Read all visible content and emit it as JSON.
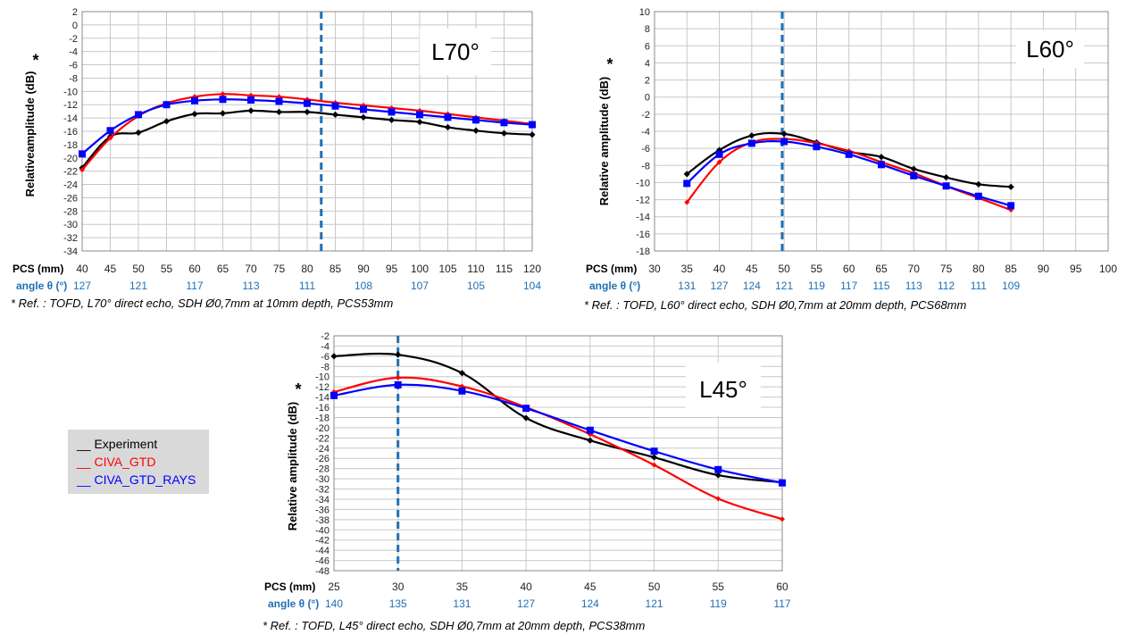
{
  "legend": {
    "items": [
      {
        "label": "__ Experiment",
        "color": "#000000"
      },
      {
        "label": "__ CIVA_GTD",
        "color": "#ff0000"
      },
      {
        "label": "__ CIVA_GTD_RAYS",
        "color": "#0000ff"
      }
    ]
  },
  "colors": {
    "experiment": "#000000",
    "civa_gtd": "#ff0000",
    "civa_gtd_rays": "#0000ff",
    "marker_line": "#1f6fb5",
    "angle_text": "#1f6fb5"
  },
  "chart_data": [
    {
      "type": "line",
      "title": "L70°",
      "xlabel": "PCS (mm)",
      "angle_label": "angle θ (°)",
      "ylabel": "Relativeamplitude (dB)",
      "ylabel_mark": "*",
      "xlim": [
        40,
        120
      ],
      "ylim": [
        -34,
        2
      ],
      "ystep": 2,
      "xticks": [
        40,
        45,
        50,
        55,
        60,
        65,
        70,
        75,
        80,
        85,
        90,
        95,
        100,
        105,
        110,
        115,
        120
      ],
      "angle_ticks": [
        {
          "x": 40,
          "label": "127"
        },
        {
          "x": 50,
          "label": "121"
        },
        {
          "x": 60,
          "label": "117"
        },
        {
          "x": 70,
          "label": "113"
        },
        {
          "x": 80,
          "label": "111"
        },
        {
          "x": 90,
          "label": "108"
        },
        {
          "x": 100,
          "label": "107"
        },
        {
          "x": 110,
          "label": "105"
        },
        {
          "x": 120,
          "label": "104"
        }
      ],
      "vline_x": 82.5,
      "grid": true,
      "reference": "* Ref. : TOFD, L70° direct echo, SDH Ø0,7mm at 10mm depth, PCS53mm",
      "series": [
        {
          "name": "Experiment",
          "x": [
            40,
            45,
            50,
            55,
            60,
            65,
            70,
            75,
            80,
            85,
            90,
            95,
            100,
            105,
            110,
            115,
            120
          ],
          "y": [
            -21.5,
            -16.8,
            -16.2,
            -14.5,
            -13.4,
            -13.3,
            -12.9,
            -13.1,
            -13.1,
            -13.5,
            -13.9,
            -14.3,
            -14.6,
            -15.4,
            -15.9,
            -16.3,
            -16.5
          ]
        },
        {
          "name": "CIVA_GTD",
          "x": [
            40,
            45,
            50,
            55,
            60,
            65,
            70,
            75,
            80,
            85,
            90,
            95,
            100,
            105,
            110,
            115,
            120
          ],
          "y": [
            -21.8,
            -17,
            -13.7,
            -11.8,
            -10.8,
            -10.4,
            -10.6,
            -10.8,
            -11.2,
            -11.7,
            -12.1,
            -12.5,
            -12.9,
            -13.4,
            -13.9,
            -14.4,
            -14.9
          ]
        },
        {
          "name": "CIVA_GTD_RAYS",
          "x": [
            40,
            45,
            50,
            55,
            60,
            65,
            70,
            75,
            80,
            85,
            90,
            95,
            100,
            105,
            110,
            115,
            120
          ],
          "y": [
            -19.4,
            -15.9,
            -13.5,
            -12,
            -11.4,
            -11.2,
            -11.3,
            -11.5,
            -11.8,
            -12.2,
            -12.7,
            -13.1,
            -13.5,
            -13.9,
            -14.3,
            -14.7,
            -15
          ]
        }
      ]
    },
    {
      "type": "line",
      "title": "L60°",
      "xlabel": "PCS (mm)",
      "angle_label": "angle θ (°)",
      "ylabel": "Relative amplitude (dB)",
      "ylabel_mark": "*",
      "xlim": [
        30,
        100
      ],
      "ylim": [
        -18,
        10
      ],
      "ystep": 2,
      "xticks": [
        30,
        35,
        40,
        45,
        50,
        55,
        60,
        65,
        70,
        75,
        80,
        85,
        90,
        95,
        100
      ],
      "angle_ticks": [
        {
          "x": 35,
          "label": "131"
        },
        {
          "x": 40,
          "label": "127"
        },
        {
          "x": 45,
          "label": "124"
        },
        {
          "x": 50,
          "label": "121"
        },
        {
          "x": 55,
          "label": "119"
        },
        {
          "x": 60,
          "label": "117"
        },
        {
          "x": 65,
          "label": "115"
        },
        {
          "x": 70,
          "label": "113"
        },
        {
          "x": 75,
          "label": "112"
        },
        {
          "x": 80,
          "label": "111"
        },
        {
          "x": 85,
          "label": "109"
        }
      ],
      "vline_x": 49.7,
      "grid": true,
      "reference": "* Ref. : TOFD, L60° direct echo, SDH Ø0,7mm at 20mm depth, PCS68mm",
      "series": [
        {
          "name": "Experiment",
          "x": [
            35,
            40,
            45,
            50,
            55,
            60,
            65,
            70,
            75,
            80,
            85
          ],
          "y": [
            -9,
            -6.2,
            -4.5,
            -4.3,
            -5.3,
            -6.4,
            -7,
            -8.4,
            -9.4,
            -10.2,
            -10.5
          ]
        },
        {
          "name": "CIVA_GTD",
          "x": [
            35,
            40,
            45,
            50,
            55,
            60,
            65,
            70,
            75,
            80,
            85
          ],
          "y": [
            -12.3,
            -7.6,
            -5.3,
            -4.9,
            -5.4,
            -6.3,
            -7.6,
            -8.9,
            -10.4,
            -11.8,
            -13.2
          ]
        },
        {
          "name": "CIVA_GTD_RAYS",
          "x": [
            35,
            40,
            45,
            50,
            55,
            60,
            65,
            70,
            75,
            80,
            85
          ],
          "y": [
            -10.1,
            -6.7,
            -5.4,
            -5.2,
            -5.8,
            -6.7,
            -7.9,
            -9.2,
            -10.4,
            -11.6,
            -12.7
          ]
        }
      ]
    },
    {
      "type": "line",
      "title": "L45°",
      "xlabel": "PCS (mm)",
      "angle_label": "angle θ (°)",
      "ylabel": "Relative amplitude (dB)",
      "ylabel_mark": "*",
      "xlim": [
        25,
        60
      ],
      "ylim": [
        -48,
        -2
      ],
      "ystep": 2,
      "xticks": [
        25,
        30,
        35,
        40,
        45,
        50,
        55,
        60
      ],
      "angle_ticks": [
        {
          "x": 25,
          "label": "140"
        },
        {
          "x": 30,
          "label": "135"
        },
        {
          "x": 35,
          "label": "131"
        },
        {
          "x": 40,
          "label": "127"
        },
        {
          "x": 45,
          "label": "124"
        },
        {
          "x": 50,
          "label": "121"
        },
        {
          "x": 55,
          "label": "119"
        },
        {
          "x": 60,
          "label": "117"
        }
      ],
      "vline_x": 30,
      "grid": true,
      "reference": "* Ref. : TOFD, L45° direct echo, SDH Ø0,7mm at 20mm depth, PCS38mm",
      "series": [
        {
          "name": "Experiment",
          "x": [
            25,
            30,
            35,
            40,
            45,
            50,
            55,
            60
          ],
          "y": [
            -6,
            -5.7,
            -9.3,
            -18.1,
            -22.5,
            -25.8,
            -29.3,
            -30.7
          ]
        },
        {
          "name": "CIVA_GTD",
          "x": [
            25,
            30,
            35,
            40,
            45,
            50,
            55,
            60
          ],
          "y": [
            -13,
            -10.2,
            -11.9,
            -16,
            -21.3,
            -27.3,
            -33.9,
            -37.9
          ]
        },
        {
          "name": "CIVA_GTD_RAYS",
          "x": [
            25,
            30,
            35,
            40,
            45,
            50,
            55,
            60
          ],
          "y": [
            -13.7,
            -11.6,
            -12.8,
            -16.2,
            -20.5,
            -24.6,
            -28.2,
            -30.8
          ]
        }
      ]
    }
  ]
}
